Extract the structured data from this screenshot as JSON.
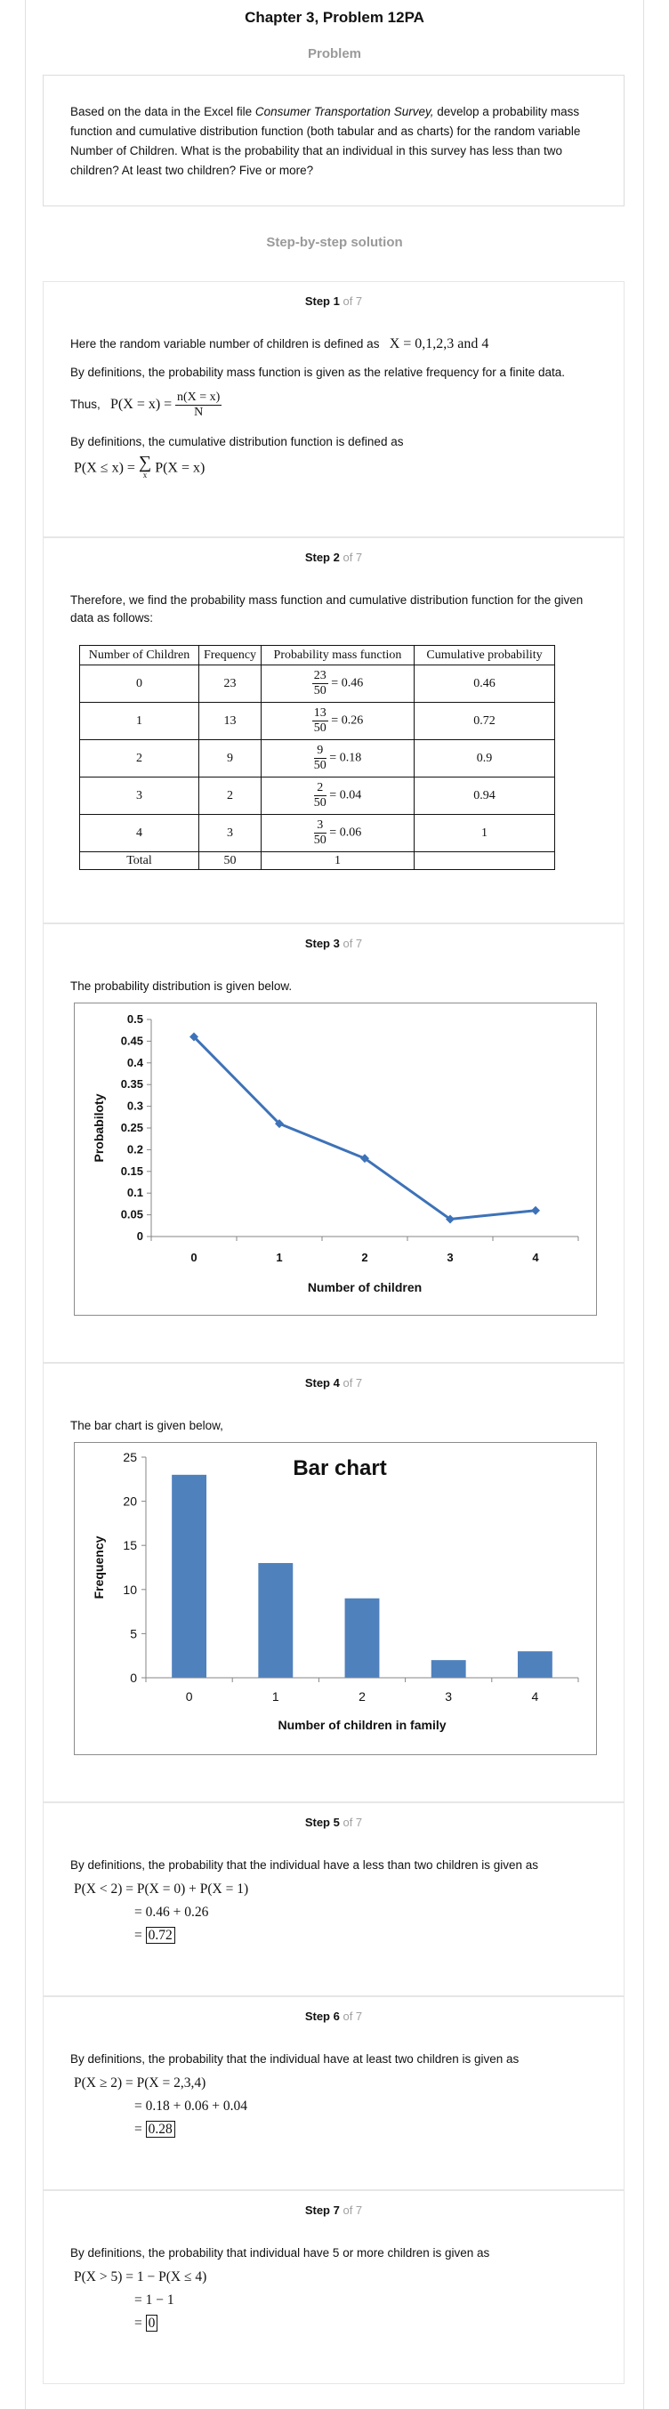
{
  "header": {
    "title": "Chapter 3, Problem 12PA"
  },
  "problem": {
    "section_title": "Problem",
    "text_before": "Based on the data in the Excel file ",
    "text_italic": "Consumer Transportation Survey,",
    "text_after": " develop a probability mass function and cumulative distribution function (both tabular and as charts) for the random variable Number of Children. What is the probability that an individual in this survey has less than two children? At least two children? Five or more?"
  },
  "solution": {
    "section_title": "Step-by-step solution"
  },
  "steps": [
    {
      "label": "Step 1",
      "of": "of 7",
      "line1": "Here the random variable number of children is defined as",
      "line1_math": "X = 0,1,2,3 and 4",
      "line2": "By definitions, the probability mass function is given as the relative frequency for a finite data.",
      "thus": "Thus,",
      "pmf_lhs": "P(X = x) =",
      "pmf_num": "n(X = x)",
      "pmf_den": "N",
      "line3": "By definitions, the cumulative distribution function is defined as",
      "cdf_lhs": "P(X ≤ x) =",
      "cdf_sum": "∑",
      "cdf_sub": "x",
      "cdf_rhs": "P(X = x)"
    },
    {
      "label": "Step 2",
      "of": "of 7",
      "text": "Therefore, we find the probability mass function and cumulative distribution function for the given data as follows:"
    },
    {
      "label": "Step 3",
      "of": "of 7",
      "text": "The probability distribution is given below."
    },
    {
      "label": "Step 4",
      "of": "of 7",
      "text": "The bar chart is given below,"
    },
    {
      "label": "Step 5",
      "of": "of 7",
      "text": "By definitions, the probability that the individual have a less than two children is given as",
      "m1": "P(X < 2) = P(X = 0) + P(X = 1)",
      "m2": "= 0.46 + 0.26",
      "m3_eq": "=",
      "m3_val": "0.72"
    },
    {
      "label": "Step 6",
      "of": "of 7",
      "text": "By definitions, the probability that the individual have at least two children is given as",
      "m1": "P(X ≥ 2) = P(X = 2,3,4)",
      "m2": "= 0.18 + 0.06 + 0.04",
      "m3_eq": "=",
      "m3_val": "0.28"
    },
    {
      "label": "Step 7",
      "of": "of 7",
      "text": "By definitions, the probability that individual have 5 or more children is given as",
      "m1": "P(X > 5) = 1 − P(X ≤ 4)",
      "m2": "= 1 − 1",
      "m3_eq": "=",
      "m3_val": "0"
    }
  ],
  "table": {
    "headers": [
      "Number of Children",
      "Frequency",
      "Probability mass function",
      "Cumulative probability"
    ],
    "rows": [
      {
        "n": "0",
        "freq": "23",
        "num": "23",
        "den": "50",
        "pmf": "= 0.46",
        "cum": "0.46"
      },
      {
        "n": "1",
        "freq": "13",
        "num": "13",
        "den": "50",
        "pmf": "= 0.26",
        "cum": "0.72"
      },
      {
        "n": "2",
        "freq": "9",
        "num": "9",
        "den": "50",
        "pmf": "= 0.18",
        "cum": "0.9"
      },
      {
        "n": "3",
        "freq": "2",
        "num": "2",
        "den": "50",
        "pmf": "= 0.04",
        "cum": "0.94"
      },
      {
        "n": "4",
        "freq": "3",
        "num": "3",
        "den": "50",
        "pmf": "= 0.06",
        "cum": "1"
      }
    ],
    "total": {
      "label": "Total",
      "freq": "50",
      "pmf": "1",
      "cum": ""
    }
  },
  "chart_data": [
    {
      "type": "line",
      "title": "",
      "xlabel": "Number of children",
      "ylabel": "Probabiloty",
      "categories": [
        "0",
        "1",
        "2",
        "3",
        "4"
      ],
      "values": [
        0.46,
        0.26,
        0.18,
        0.04,
        0.06
      ],
      "ylim": [
        0,
        0.5
      ],
      "yticks": [
        "0",
        "0.05",
        "0.1",
        "0.15",
        "0.2",
        "0.25",
        "0.3",
        "0.35",
        "0.4",
        "0.45",
        "0.5"
      ],
      "color": "#3d72b8",
      "grid": false,
      "legend": "none"
    },
    {
      "type": "bar",
      "title": "Bar chart",
      "xlabel": "Number of children in family",
      "ylabel": "Frequency",
      "categories": [
        "0",
        "1",
        "2",
        "3",
        "4"
      ],
      "values": [
        23,
        13,
        9,
        2,
        3
      ],
      "ylim": [
        0,
        25
      ],
      "yticks": [
        "0",
        "5",
        "10",
        "15",
        "20",
        "25"
      ],
      "color": "#4f81bd",
      "grid": false,
      "legend": "none"
    }
  ]
}
